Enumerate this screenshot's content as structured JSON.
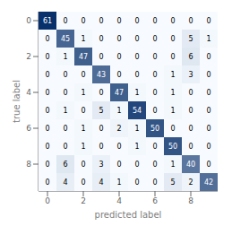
{
  "chart_data": {
    "type": "heatmap",
    "xlabel": "predicted label",
    "ylabel": "true label",
    "matrix": [
      [
        61,
        0,
        0,
        0,
        0,
        0,
        0,
        0,
        0,
        0
      ],
      [
        0,
        45,
        1,
        0,
        0,
        0,
        0,
        0,
        5,
        1
      ],
      [
        0,
        1,
        47,
        0,
        0,
        0,
        0,
        0,
        6,
        0
      ],
      [
        0,
        0,
        0,
        43,
        0,
        0,
        0,
        1,
        3,
        0
      ],
      [
        0,
        0,
        1,
        0,
        47,
        1,
        0,
        1,
        0,
        0
      ],
      [
        0,
        1,
        0,
        5,
        1,
        54,
        0,
        1,
        0,
        0
      ],
      [
        0,
        0,
        1,
        0,
        2,
        1,
        50,
        0,
        0,
        0
      ],
      [
        0,
        0,
        1,
        0,
        0,
        1,
        0,
        50,
        0,
        0
      ],
      [
        0,
        6,
        0,
        3,
        0,
        0,
        0,
        1,
        40,
        0
      ],
      [
        0,
        4,
        0,
        4,
        1,
        0,
        0,
        5,
        2,
        42
      ]
    ],
    "xlim": [
      -0.5,
      9.5
    ],
    "ylim": [
      9.5,
      -0.5
    ],
    "xticks": [
      0,
      2,
      4,
      6,
      8
    ],
    "yticks": [
      0,
      2,
      4,
      6,
      8
    ],
    "color": "#08306b",
    "data_labels": true,
    "grid": false
  }
}
